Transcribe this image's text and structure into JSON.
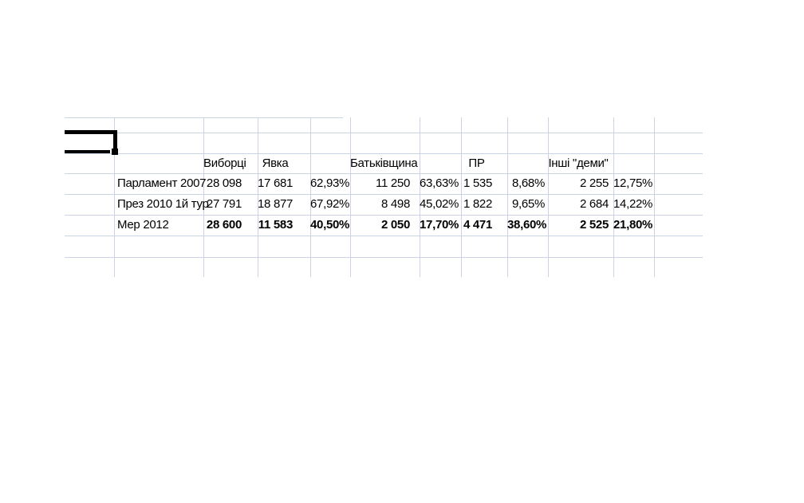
{
  "colors": {
    "background": "#ffffff",
    "gridline": "#ccd4e3",
    "text": "#000000",
    "selection_border": "#000000"
  },
  "table": {
    "column_headers": [
      "Виборці",
      "Явка",
      "",
      "Батьківщина",
      "",
      "ПР",
      "",
      "Інші \"деми\"",
      ""
    ],
    "rows": [
      {
        "label": "Парламент 2007",
        "values": [
          "28 098",
          "17 681",
          "62,93%",
          "11 250",
          "63,63%",
          "1 535",
          "8,68%",
          "2 255",
          "12,75%"
        ],
        "bold_values": false
      },
      {
        "label": "През 2010 1й тур",
        "values": [
          "27 791",
          "18 877",
          "67,92%",
          "8 498",
          "45,02%",
          "1 822",
          "9,65%",
          "2 684",
          "14,22%"
        ],
        "bold_values": false
      },
      {
        "label": "Мер 2012",
        "values": [
          "28 600",
          "11 583",
          "40,50%",
          "2 050",
          "17,70%",
          "4 471",
          "38,60%",
          "2 525",
          "21,80%"
        ],
        "bold_values": true
      }
    ]
  }
}
